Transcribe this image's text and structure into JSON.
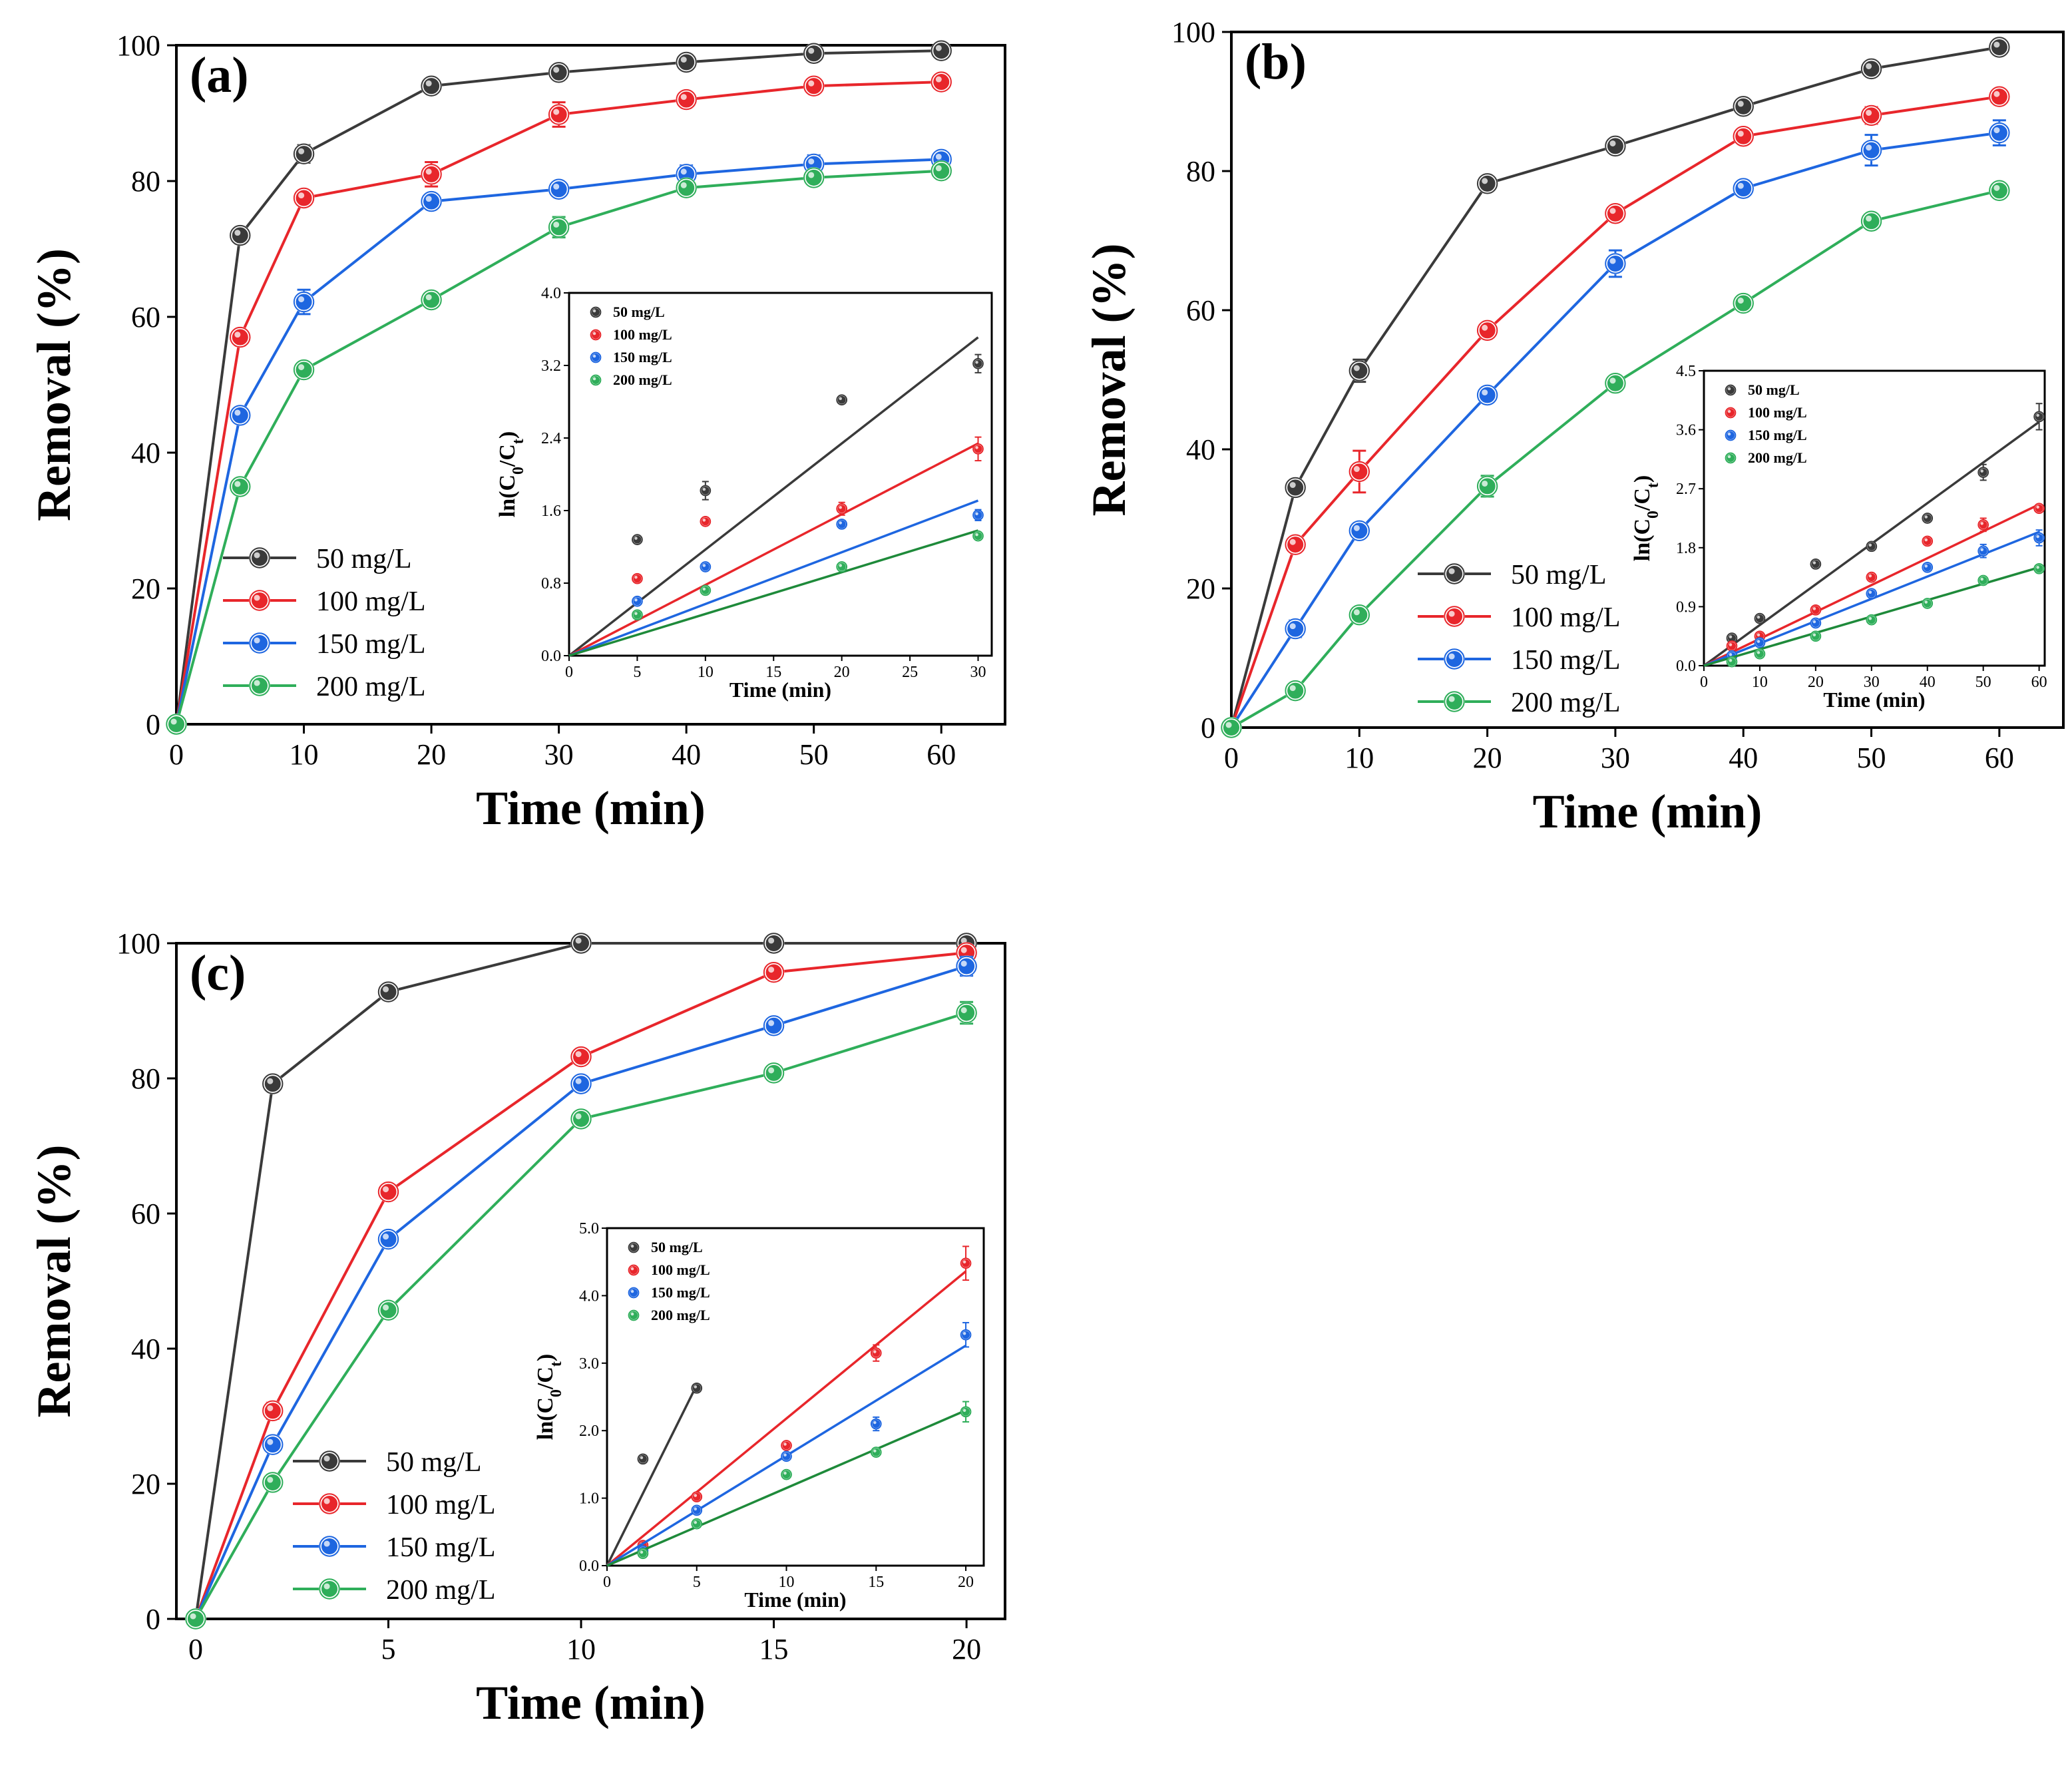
{
  "colors": {
    "50 mg/L": "#3a3a3a",
    "100 mg/L": "#e8262b",
    "150 mg/L": "#1e66e0",
    "200 mg/L": "#2fae5a"
  },
  "chart_data": [
    {
      "id": "a",
      "type": "line",
      "panel_label": "(a)",
      "xlabel": "Time (min)",
      "ylabel": "Removal (%)",
      "xlim": [
        0,
        65
      ],
      "ylim": [
        0,
        100
      ],
      "xticks": [
        0,
        10,
        20,
        30,
        40,
        50,
        60
      ],
      "yticks": [
        0,
        20,
        40,
        60,
        80,
        100
      ],
      "legend_position": "bottom-left",
      "x": [
        0,
        5,
        10,
        20,
        30,
        40,
        50,
        60
      ],
      "series": [
        {
          "name": "50 mg/L",
          "values": [
            0,
            72,
            84,
            94,
            96,
            97.5,
            98.8,
            99.2
          ],
          "errors": [
            0,
            0.7,
            1.3,
            0.6,
            0.6,
            0.6,
            0.5,
            0.5
          ]
        },
        {
          "name": "100 mg/L",
          "values": [
            0,
            57,
            77.5,
            81,
            89.8,
            92,
            94,
            94.6
          ],
          "errors": [
            0,
            0.8,
            0.7,
            1.8,
            1.8,
            0.6,
            0.6,
            0.6
          ]
        },
        {
          "name": "150 mg/L",
          "values": [
            0,
            45.5,
            62.2,
            77,
            78.8,
            81,
            82.5,
            83.2
          ],
          "errors": [
            0,
            0.8,
            1.8,
            1.0,
            1.0,
            1.3,
            1.3,
            1.0
          ]
        },
        {
          "name": "200 mg/L",
          "values": [
            0,
            35,
            52.2,
            62.5,
            73.2,
            79,
            80.5,
            81.5
          ],
          "errors": [
            0,
            0.8,
            0.8,
            0.8,
            1.5,
            0.8,
            0.8,
            0.8
          ]
        }
      ],
      "inset": {
        "type": "scatter",
        "xlabel": "Time (min)",
        "ylabel": "ln(C0/Ct)",
        "xlim": [
          0,
          31
        ],
        "ylim": [
          0,
          4.0
        ],
        "xticks": [
          0,
          5,
          10,
          15,
          20,
          25,
          30
        ],
        "yticks": [
          0.0,
          0.8,
          1.6,
          2.4,
          3.2,
          4.0
        ],
        "legend_position": "top-left",
        "x": [
          5,
          10,
          20,
          30
        ],
        "series": [
          {
            "name": "50 mg/L",
            "values": [
              1.28,
              1.82,
              2.82,
              3.22
            ],
            "errors": [
              0,
              0.1,
              0,
              0.1
            ],
            "fit_slope": 0.117
          },
          {
            "name": "100 mg/L",
            "values": [
              0.85,
              1.48,
              1.62,
              2.28
            ],
            "errors": [
              0,
              0,
              0.07,
              0.13
            ],
            "fit_slope": 0.078
          },
          {
            "name": "150 mg/L",
            "values": [
              0.6,
              0.98,
              1.45,
              1.55
            ],
            "errors": [
              0,
              0,
              0,
              0.06
            ],
            "fit_slope": 0.057
          },
          {
            "name": "200 mg/L",
            "values": [
              0.45,
              0.72,
              0.98,
              1.32
            ],
            "errors": [
              0,
              0,
              0,
              0
            ],
            "fit_slope": 0.046
          }
        ]
      }
    },
    {
      "id": "b",
      "type": "line",
      "panel_label": "(b)",
      "xlabel": "Time (min)",
      "ylabel": "Removal (%)",
      "xlim": [
        0,
        65
      ],
      "ylim": [
        0,
        100
      ],
      "xticks": [
        0,
        10,
        20,
        30,
        40,
        50,
        60
      ],
      "yticks": [
        0,
        20,
        40,
        60,
        80,
        100
      ],
      "legend_position": "bottom-left",
      "x": [
        0,
        5,
        10,
        20,
        30,
        40,
        50,
        60
      ],
      "series": [
        {
          "name": "50 mg/L",
          "values": [
            0,
            34.5,
            51.3,
            78.2,
            83.6,
            89.3,
            94.7,
            97.8
          ],
          "errors": [
            0,
            0.6,
            1.6,
            0.8,
            0.6,
            0.7,
            0.6,
            0.6
          ]
        },
        {
          "name": "100 mg/L",
          "values": [
            0,
            26.3,
            36.8,
            57.1,
            73.9,
            85,
            88,
            90.7
          ],
          "errors": [
            0,
            0.8,
            3.0,
            0.6,
            0.8,
            0.8,
            1.2,
            0.6
          ]
        },
        {
          "name": "150 mg/L",
          "values": [
            0,
            14.2,
            28.3,
            47.8,
            66.7,
            77.5,
            83,
            85.5
          ],
          "errors": [
            0,
            1.2,
            0.8,
            0.8,
            1.9,
            0.8,
            2.2,
            1.8
          ]
        },
        {
          "name": "200 mg/L",
          "values": [
            0,
            5.3,
            16.2,
            34.7,
            49.5,
            61,
            72.8,
            77.2
          ],
          "errors": [
            0,
            0.5,
            0.5,
            1.5,
            0.5,
            0.5,
            0.5,
            0.5
          ]
        }
      ],
      "inset": {
        "type": "scatter",
        "xlabel": "Time (min)",
        "ylabel": "ln(C0/Ct)",
        "xlim": [
          0,
          61
        ],
        "ylim": [
          0,
          4.5
        ],
        "xticks": [
          0,
          10,
          20,
          30,
          40,
          50,
          60
        ],
        "yticks": [
          0.0,
          0.9,
          1.8,
          2.7,
          3.6,
          4.5
        ],
        "legend_position": "top-left",
        "x": [
          5,
          10,
          20,
          30,
          40,
          50,
          60
        ],
        "series": [
          {
            "name": "50 mg/L",
            "values": [
              0.42,
              0.72,
              1.55,
              1.82,
              2.25,
              2.95,
              3.8
            ],
            "errors": [
              0,
              0,
              0,
              0,
              0,
              0.12,
              0.2
            ],
            "fit_slope": 0.062
          },
          {
            "name": "100 mg/L",
            "values": [
              0.3,
              0.45,
              0.85,
              1.35,
              1.9,
              2.15,
              2.4
            ],
            "errors": [
              0,
              0,
              0,
              0,
              0,
              0.1,
              0.05
            ],
            "fit_slope": 0.041
          },
          {
            "name": "150 mg/L",
            "values": [
              0.15,
              0.35,
              0.65,
              1.1,
              1.5,
              1.75,
              1.95
            ],
            "errors": [
              0,
              0,
              0,
              0,
              0,
              0.1,
              0.12
            ],
            "fit_slope": 0.034
          },
          {
            "name": "200 mg/L",
            "values": [
              0.06,
              0.18,
              0.45,
              0.7,
              0.95,
              1.3,
              1.48
            ],
            "errors": [
              0,
              0,
              0,
              0,
              0,
              0,
              0
            ],
            "fit_slope": 0.025
          }
        ]
      }
    },
    {
      "id": "c",
      "type": "line",
      "panel_label": "(c)",
      "xlabel": "Time (min)",
      "ylabel": "Removal (%)",
      "xlim": [
        -0.5,
        21
      ],
      "ylim": [
        0,
        100
      ],
      "xticks": [
        0,
        5,
        10,
        15,
        20
      ],
      "yticks": [
        0,
        20,
        40,
        60,
        80,
        100
      ],
      "legend_position": "bottom-left",
      "x": [
        0,
        2,
        5,
        10,
        15,
        20
      ],
      "series": [
        {
          "name": "50 mg/L",
          "values": [
            0,
            79.2,
            92.8,
            100,
            100,
            100
          ],
          "errors": [
            0,
            0.6,
            0.6,
            0.4,
            0.4,
            0.4
          ]
        },
        {
          "name": "100 mg/L",
          "values": [
            0,
            30.8,
            63.2,
            83.2,
            95.7,
            98.6
          ],
          "errors": [
            0,
            1.2,
            0.8,
            0.8,
            0.8,
            0.6
          ]
        },
        {
          "name": "150 mg/L",
          "values": [
            0,
            25.8,
            56.2,
            79.2,
            87.8,
            96.6
          ],
          "errors": [
            0,
            0.8,
            0.8,
            1.0,
            1.0,
            1.4
          ]
        },
        {
          "name": "200 mg/L",
          "values": [
            0,
            20.2,
            45.7,
            74,
            80.8,
            89.7
          ],
          "errors": [
            0,
            0.8,
            0.8,
            0.8,
            0.8,
            1.6
          ]
        }
      ],
      "inset": {
        "type": "scatter",
        "xlabel": "Time (min)",
        "ylabel": "ln(C0/Ct)",
        "xlim": [
          0,
          21
        ],
        "ylim": [
          0,
          5.0
        ],
        "xticks": [
          0,
          5,
          10,
          15,
          20
        ],
        "yticks": [
          0.0,
          1.0,
          2.0,
          3.0,
          4.0,
          5.0
        ],
        "legend_position": "top-left",
        "x": [
          2,
          5,
          10,
          15,
          20
        ],
        "series": [
          {
            "name": "50 mg/L",
            "x": [
              2,
              5
            ],
            "values": [
              1.58,
              2.63
            ],
            "errors": [
              0,
              0
            ],
            "fit_slope": 0.535,
            "fit_xmax": 5
          },
          {
            "name": "100 mg/L",
            "values": [
              0.3,
              1.02,
              1.78,
              3.15,
              4.48
            ],
            "errors": [
              0,
              0,
              0,
              0.12,
              0.25
            ],
            "fit_slope": 0.218,
            "fit_xmax": 20
          },
          {
            "name": "150 mg/L",
            "values": [
              0.22,
              0.82,
              1.62,
              2.1,
              3.42
            ],
            "errors": [
              0,
              0,
              0,
              0.1,
              0.18
            ],
            "fit_slope": 0.163,
            "fit_xmax": 20
          },
          {
            "name": "200 mg/L",
            "values": [
              0.18,
              0.62,
              1.35,
              1.68,
              2.28
            ],
            "errors": [
              0,
              0,
              0,
              0,
              0.15
            ],
            "fit_slope": 0.115,
            "fit_xmax": 20
          }
        ]
      }
    }
  ]
}
